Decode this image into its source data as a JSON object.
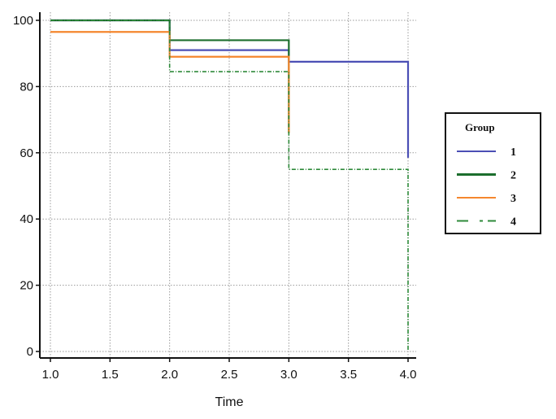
{
  "chart_data": {
    "type": "line",
    "step": true,
    "xlabel": "Time",
    "ylabel": "",
    "xlim": [
      1.0,
      4.0
    ],
    "ylim": [
      0,
      100
    ],
    "xticks": [
      "1.0",
      "1.5",
      "2.0",
      "2.5",
      "3.0",
      "3.5",
      "4.0"
    ],
    "yticks": [
      "0",
      "20",
      "40",
      "60",
      "80",
      "100"
    ],
    "grid": true,
    "legend": {
      "title": "Group",
      "placement": "right"
    },
    "series": [
      {
        "name": "1",
        "color": "#4b4fb5",
        "style": "solid",
        "x": [
          1.0,
          2.0,
          3.0,
          4.0
        ],
        "y": [
          100,
          91,
          87.5,
          58.5
        ]
      },
      {
        "name": "2",
        "color": "#1c6e2d",
        "style": "solid",
        "x": [
          1.0,
          2.0,
          3.0
        ],
        "y": [
          100,
          94,
          66
        ]
      },
      {
        "name": "3",
        "color": "#f5872e",
        "style": "solid",
        "x": [
          1.0,
          2.0,
          3.0
        ],
        "y": [
          96.5,
          89,
          66
        ]
      },
      {
        "name": "4",
        "color": "#2e8a3a",
        "style": "dashdot",
        "x": [
          1.0,
          2.0,
          3.0,
          4.0
        ],
        "y": [
          100,
          84.5,
          55,
          0
        ]
      }
    ]
  }
}
